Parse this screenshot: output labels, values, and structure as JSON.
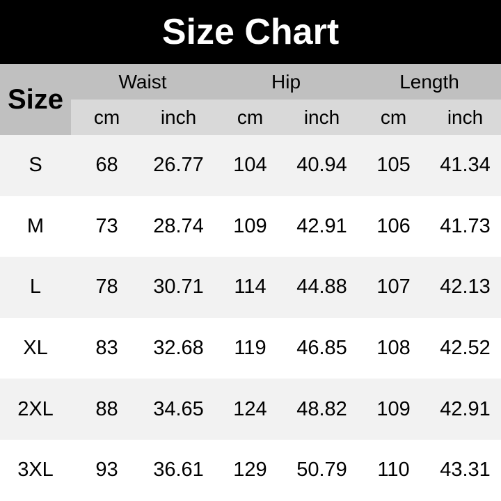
{
  "title": "Size Chart",
  "header": {
    "size": "Size",
    "groups": [
      "Waist",
      "Hip",
      "Length"
    ],
    "units": [
      "cm",
      "inch",
      "cm",
      "inch",
      "cm",
      "inch"
    ]
  },
  "rows": [
    [
      "S",
      "68",
      "26.77",
      "104",
      "40.94",
      "105",
      "41.34"
    ],
    [
      "M",
      "73",
      "28.74",
      "109",
      "42.91",
      "106",
      "41.73"
    ],
    [
      "L",
      "78",
      "30.71",
      "114",
      "44.88",
      "107",
      "42.13"
    ],
    [
      "XL",
      "83",
      "32.68",
      "119",
      "46.85",
      "108",
      "42.52"
    ],
    [
      "2XL",
      "88",
      "34.65",
      "124",
      "48.82",
      "109",
      "42.91"
    ],
    [
      "3XL",
      "93",
      "36.61",
      "129",
      "50.79",
      "110",
      "43.31"
    ]
  ]
}
